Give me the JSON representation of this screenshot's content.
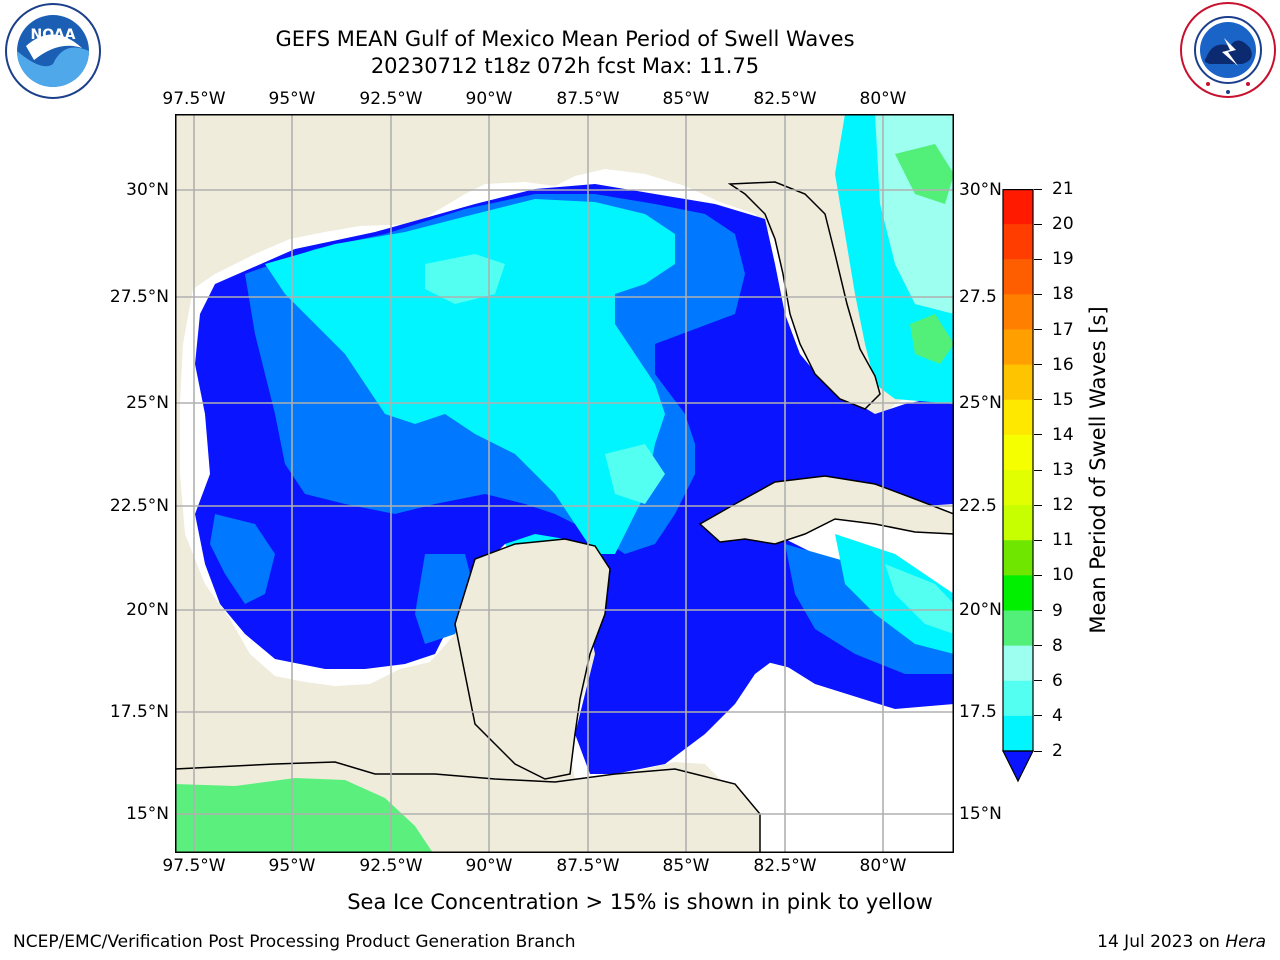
{
  "title": {
    "line1": "GEFS MEAN Gulf of Mexico Mean Period of Swell Waves",
    "line2": "20230712 t18z 072h fcst   Max: 11.75"
  },
  "axes": {
    "lon_labels": [
      "97.5°W",
      "95°W",
      "92.5°W",
      "90°W",
      "87.5°W",
      "85°W",
      "82.5°W",
      "80°W"
    ],
    "lat_labels_left": [
      "30°N",
      "27.5°N",
      "25°N",
      "22.5°N",
      "20°N",
      "17.5°N",
      "15°N"
    ],
    "lat_labels_right": [
      "30°N",
      "27.5",
      "25°N",
      "22.5",
      "20°N",
      "17.5",
      "15°N"
    ]
  },
  "colorbar": {
    "label": "Mean Period of Swell Waves [s]",
    "ticks": [
      "21",
      "20",
      "19",
      "18",
      "17",
      "16",
      "15",
      "14",
      "13",
      "12",
      "11",
      "10",
      "9",
      "8",
      "6",
      "4",
      "2"
    ],
    "colors": [
      "#ff1a00",
      "#ff3d00",
      "#ff5e00",
      "#ff8000",
      "#ffa000",
      "#ffc400",
      "#ffe800",
      "#f6ff00",
      "#e1ff00",
      "#c8ff00",
      "#6ee600",
      "#00f000",
      "#52f078",
      "#9cfff0",
      "#52fff0",
      "#00f5ff",
      "#0078ff"
    ],
    "under_color": "#0a14ff"
  },
  "chart_data": {
    "type": "heatmap",
    "title": "GEFS MEAN Gulf of Mexico Mean Period of Swell Waves",
    "subtitle": "20230712 t18z 072h fcst   Max: 11.75",
    "variable": "Mean Period of Swell Waves [s]",
    "max": 11.75,
    "lon_range": [
      "97.5°W",
      "80°W"
    ],
    "lat_range": [
      "15°N",
      "30°N"
    ],
    "levels": [
      2,
      4,
      6,
      8,
      9,
      10,
      11,
      12,
      13,
      14,
      15,
      16,
      17,
      18,
      19,
      20,
      21
    ]
  },
  "note": "Sea Ice Concentration > 15% is shown in pink to yellow",
  "footer": {
    "left": "NCEP/EMC/Verification Post Processing Product Generation Branch",
    "date": "14 Jul 2023 on ",
    "host": "Hera"
  },
  "logos": {
    "noaa_text": "NOAA",
    "noaa_ring": "NATIONAL OCEANIC AND ATMOSPHERIC ADMINISTRATION · U.S. DEPARTMENT OF COMMERCE",
    "nws_ring": "NATIONAL WEATHER SERVICE"
  }
}
